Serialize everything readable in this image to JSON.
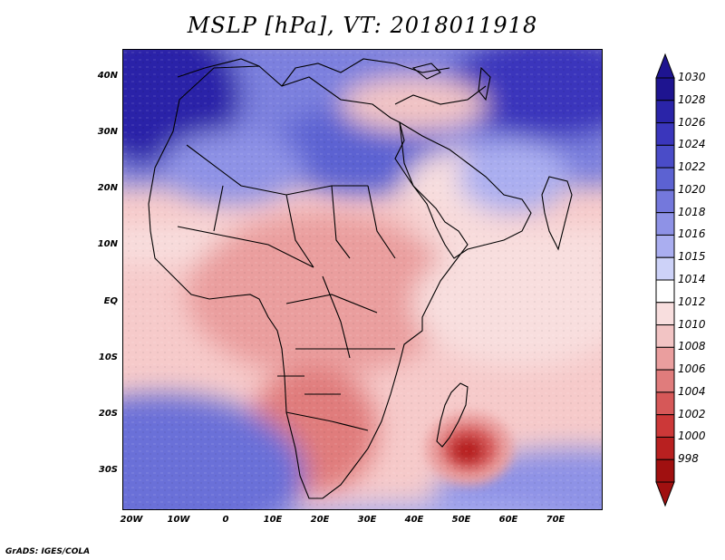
{
  "title": "MSLP [hPa], VT: 2018011918",
  "footer": "GrADS: IGES/COLA",
  "lat_labels": [
    "40N",
    "30N",
    "20N",
    "10N",
    "EQ",
    "10S",
    "20S",
    "30S"
  ],
  "lon_labels": [
    "20W",
    "10W",
    "0",
    "10E",
    "20E",
    "30E",
    "40E",
    "50E",
    "60E",
    "70E"
  ],
  "colorbar": {
    "levels": [
      "1030",
      "1028",
      "1026",
      "1024",
      "1022",
      "1020",
      "1018",
      "1016",
      "1015",
      "1014",
      "1012",
      "1010",
      "1008",
      "1006",
      "1004",
      "1002",
      "1000",
      "998"
    ],
    "colors": [
      "#1e1490",
      "#2a24a8",
      "#3a36bc",
      "#4a4cc8",
      "#5c62d2",
      "#7478dc",
      "#8e92e6",
      "#aaaef0",
      "#cdd2f8",
      "#ffffff",
      "#f8dede",
      "#f2c4c4",
      "#ea9e9e",
      "#e07c7c",
      "#d65858",
      "#cc3838",
      "#b82020",
      "#a01010"
    ]
  }
}
